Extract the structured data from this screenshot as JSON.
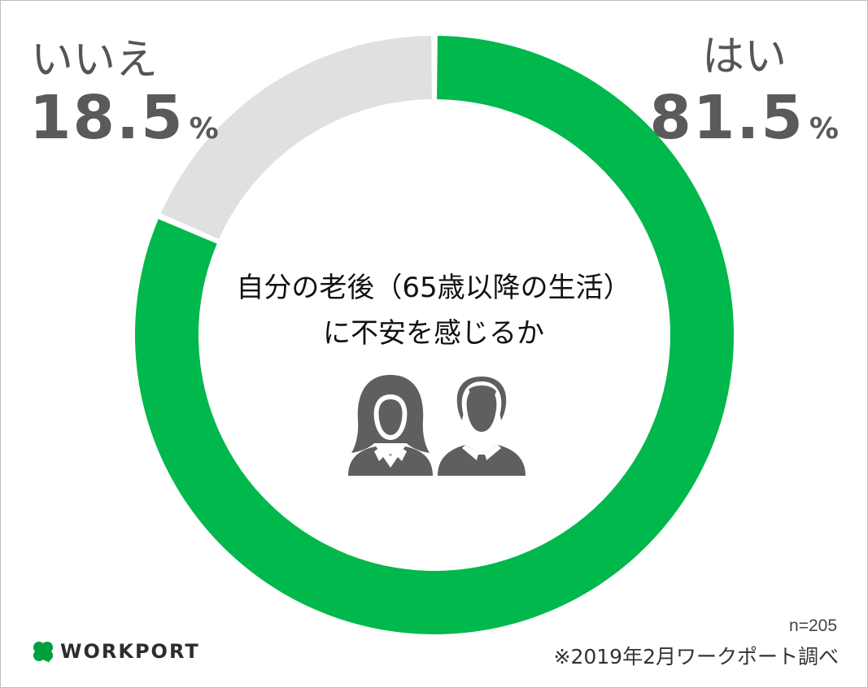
{
  "chart_data": {
    "type": "pie",
    "donut": true,
    "categories": [
      "はい",
      "いいえ"
    ],
    "values": [
      81.5,
      18.5
    ],
    "value_unit": "%",
    "colors": [
      "#00b84b",
      "#e0e0e0"
    ],
    "title": "自分の老後（65歳以降の生活）に不安を感じるか",
    "title_lines": [
      "自分の老後（65歳以降の生活）",
      "に不安を感じるか"
    ],
    "sample_size": "n=205",
    "source": "※2019年2月ワークポート調べ"
  },
  "labels": {
    "yes": {
      "label": "はい",
      "value": "81.5",
      "unit": "%"
    },
    "no": {
      "label": "いいえ",
      "value": "18.5",
      "unit": "%"
    }
  },
  "icons": [
    "woman-silhouette-icon",
    "man-silhouette-icon",
    "clover-icon"
  ],
  "logo": {
    "text": "WORKPORT",
    "color": "#00a040"
  }
}
